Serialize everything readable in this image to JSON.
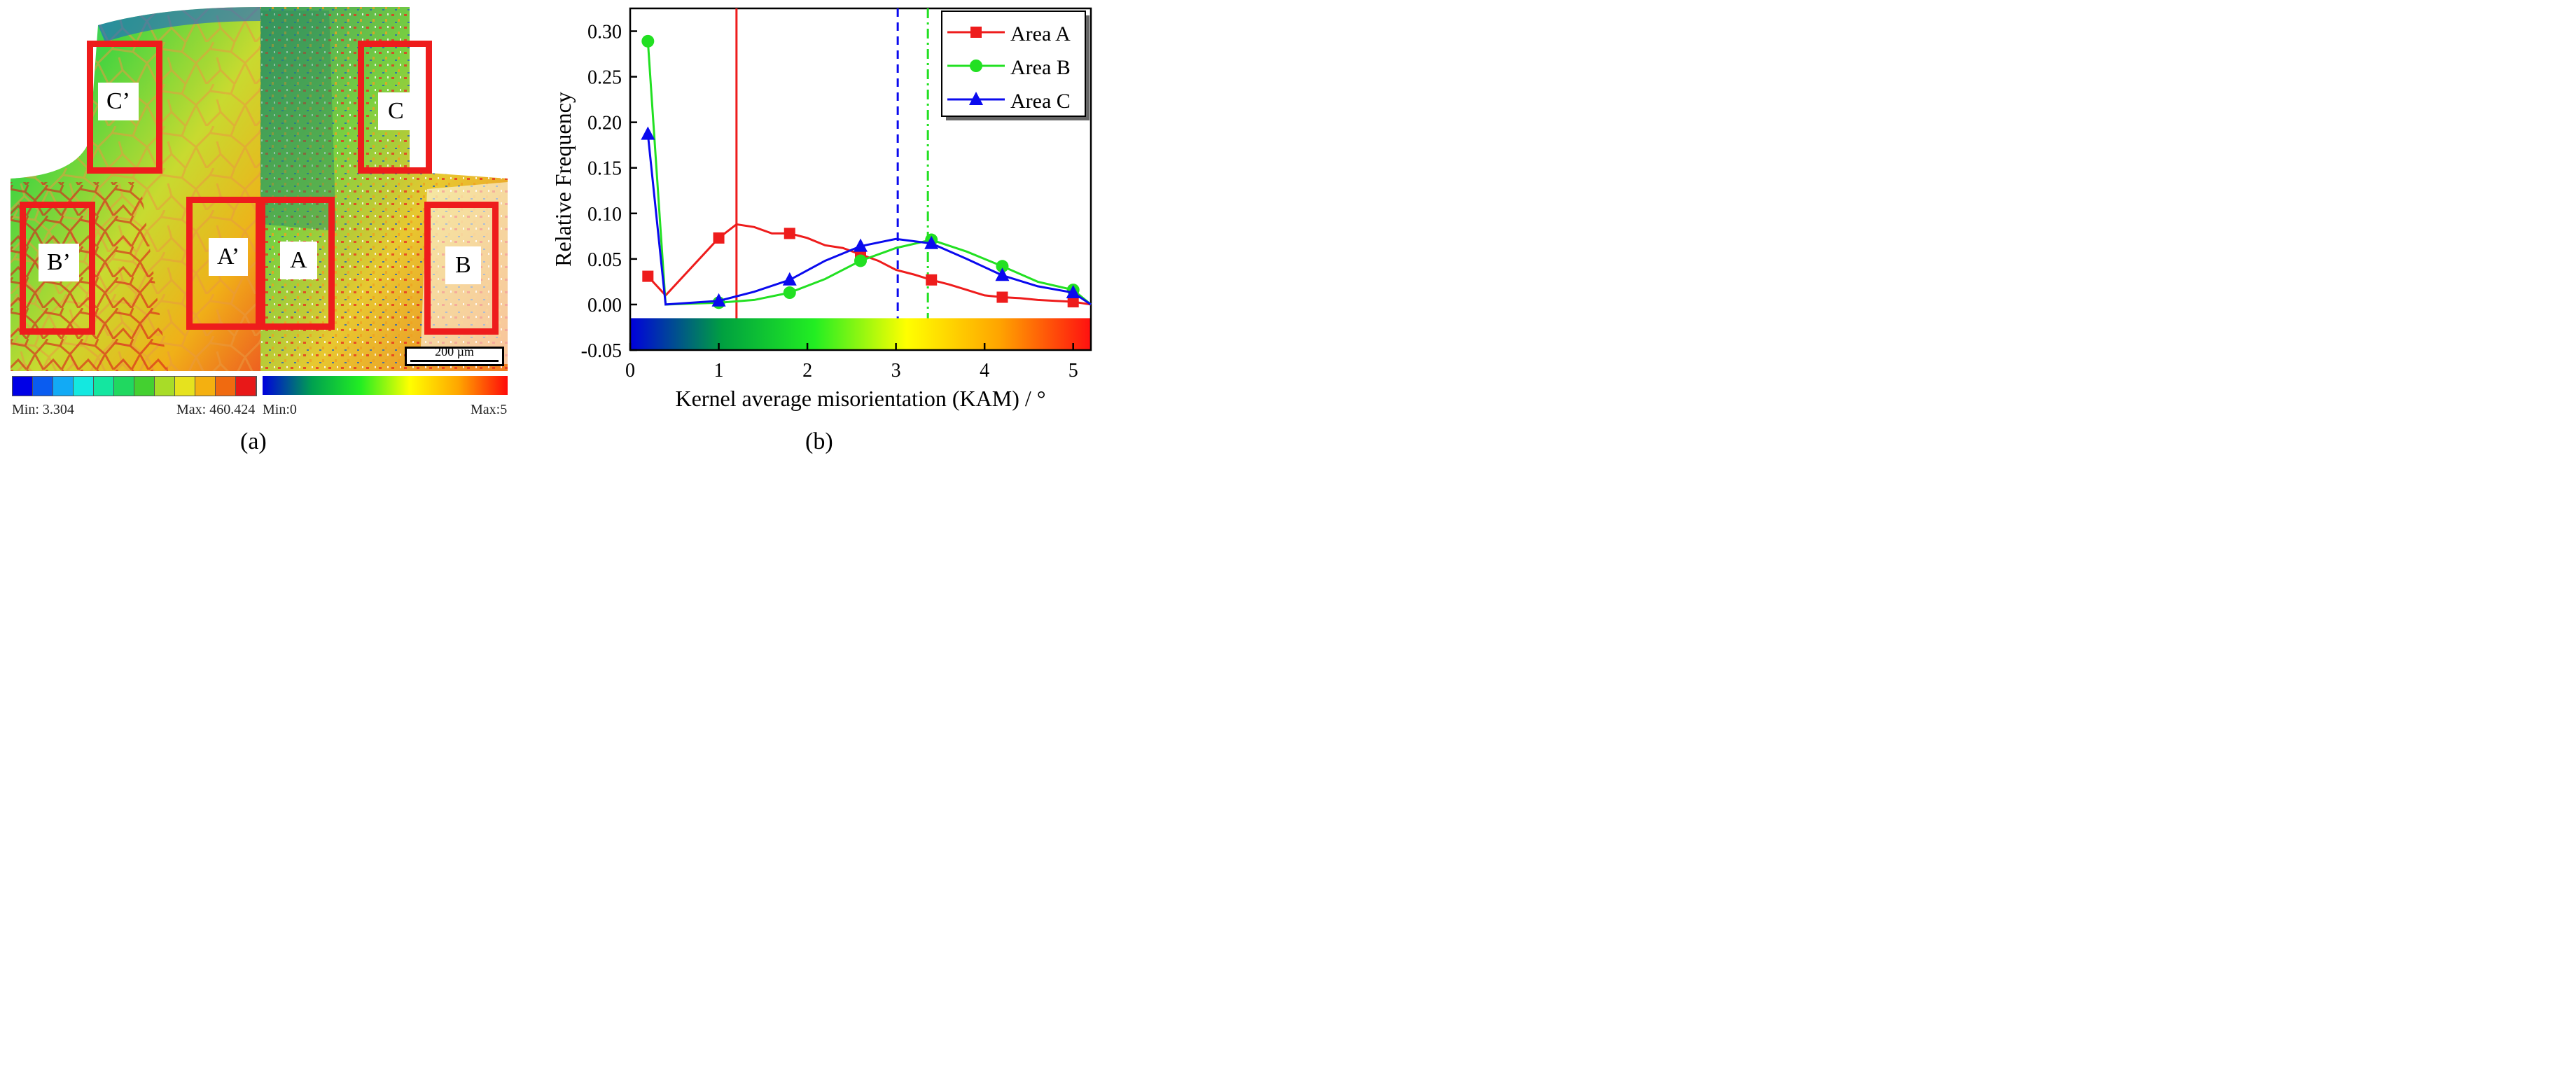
{
  "panel_a": {
    "caption": "(a)",
    "fem_legend": {
      "min_label": "Min: 3.304",
      "max_label": "Max: 460.424",
      "colors": [
        "#0000e6",
        "#0a5cf0",
        "#12aaf5",
        "#14e8e0",
        "#14e6a0",
        "#20d860",
        "#44d030",
        "#a8dc28",
        "#e6e21e",
        "#f4b010",
        "#f06a10",
        "#e81818"
      ]
    },
    "kam_legend": {
      "min_label": "Min:0",
      "max_label": "Max:5"
    },
    "scale_bar": "200 µm",
    "regions": [
      {
        "label": "C’",
        "kind": "simulation"
      },
      {
        "label": "B’",
        "kind": "simulation"
      },
      {
        "label": "A’",
        "kind": "simulation"
      },
      {
        "label": "A",
        "kind": "experiment"
      },
      {
        "label": "C",
        "kind": "experiment"
      },
      {
        "label": "B",
        "kind": "experiment"
      }
    ]
  },
  "panel_b": {
    "caption": "(b)"
  },
  "chart_data": {
    "type": "line",
    "title": "",
    "xlabel": "Kernel average misorientation (KAM) / °",
    "ylabel": "Relative Frequency",
    "xlim": [
      0,
      5.2
    ],
    "ylim": [
      -0.05,
      0.325
    ],
    "xticks": [
      "0",
      "1",
      "2",
      "3",
      "4",
      "5"
    ],
    "yticks": [
      "-0.05",
      "0.00",
      "0.05",
      "0.10",
      "0.15",
      "0.20",
      "0.25",
      "0.30"
    ],
    "legend_position": "top-right",
    "series": [
      {
        "name": "Area A",
        "color": "#ee1c1c",
        "marker": "square",
        "x": [
          0.2,
          0.4,
          1.0,
          1.2,
          1.4,
          1.6,
          1.8,
          2.0,
          2.2,
          2.4,
          2.6,
          2.8,
          3.0,
          3.2,
          3.4,
          3.6,
          3.8,
          4.0,
          4.2,
          4.4,
          4.6,
          4.8,
          5.0,
          5.2
        ],
        "y": [
          0.031,
          0.01,
          0.073,
          0.088,
          0.085,
          0.078,
          0.078,
          0.073,
          0.065,
          0.062,
          0.055,
          0.048,
          0.038,
          0.033,
          0.027,
          0.022,
          0.016,
          0.01,
          0.008,
          0.007,
          0.005,
          0.004,
          0.003,
          0.0
        ],
        "marker_x": [
          0.2,
          1.0,
          1.8,
          2.6,
          3.4,
          4.2,
          5.0
        ]
      },
      {
        "name": "Area B",
        "color": "#22e022",
        "marker": "circle",
        "x": [
          0.2,
          0.4,
          1.0,
          1.4,
          1.8,
          2.2,
          2.6,
          3.0,
          3.4,
          3.8,
          4.2,
          4.6,
          5.0,
          5.2
        ],
        "y": [
          0.289,
          0.0,
          0.002,
          0.005,
          0.013,
          0.028,
          0.048,
          0.062,
          0.071,
          0.058,
          0.042,
          0.025,
          0.016,
          0.0
        ],
        "marker_x": [
          0.2,
          1.0,
          1.8,
          2.6,
          3.4,
          4.2,
          5.0
        ]
      },
      {
        "name": "Area C",
        "color": "#0a0aee",
        "marker": "triangle",
        "x": [
          0.2,
          0.4,
          1.0,
          1.4,
          1.8,
          2.2,
          2.6,
          3.0,
          3.4,
          3.8,
          4.2,
          4.6,
          5.0,
          5.2
        ],
        "y": [
          0.187,
          0.0,
          0.004,
          0.014,
          0.027,
          0.048,
          0.064,
          0.072,
          0.067,
          0.05,
          0.032,
          0.02,
          0.013,
          0.0
        ],
        "marker_x": [
          0.2,
          1.0,
          1.8,
          2.6,
          3.4,
          4.2,
          5.0
        ]
      }
    ],
    "reference_lines": [
      {
        "x": 1.2,
        "color": "#ee1c1c",
        "style": "solid"
      },
      {
        "x": 3.02,
        "color": "#0a0aee",
        "style": "dashed"
      },
      {
        "x": 3.36,
        "color": "#22e022",
        "style": "dashdot"
      }
    ],
    "colorbar": {
      "range": [
        0,
        5.2
      ],
      "y_range": [
        -0.05,
        -0.015
      ],
      "stops": [
        "#0000dd",
        "#00a040",
        "#22ee22",
        "#ffff00",
        "#ffa500",
        "#ff1010"
      ]
    }
  }
}
